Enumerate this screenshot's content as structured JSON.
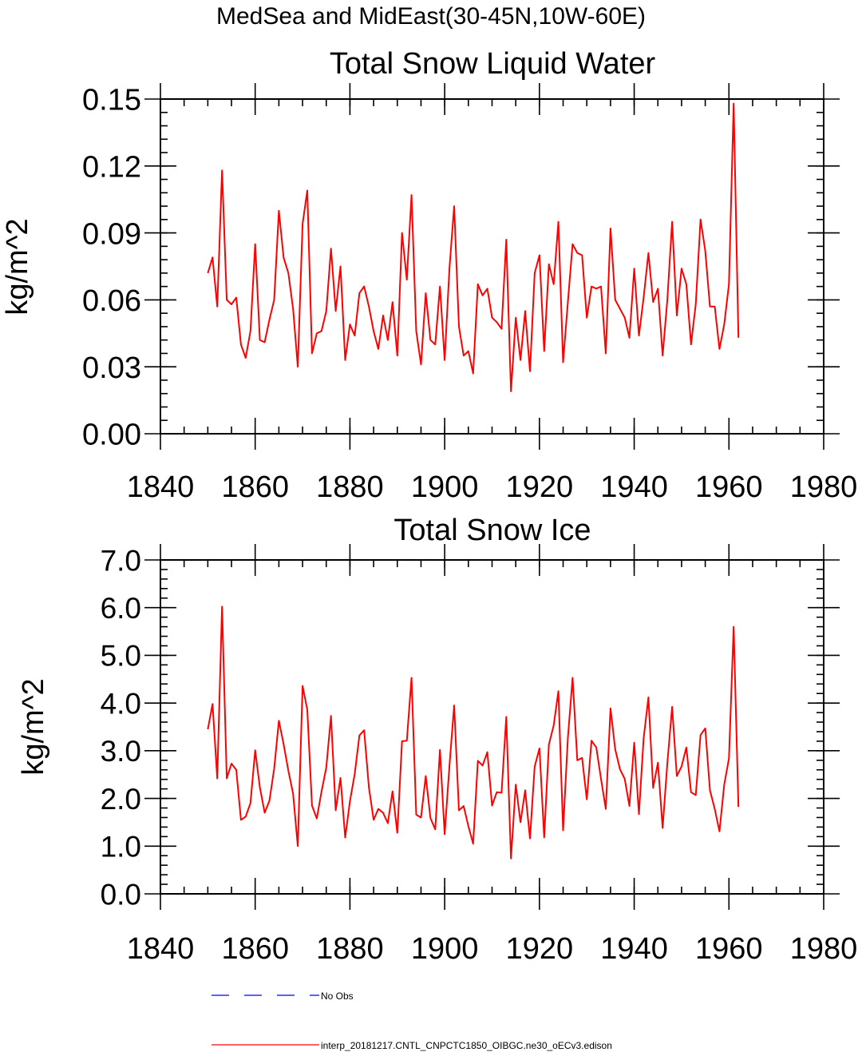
{
  "page_title": "MedSea and MidEast(30-45N,10W-60E)",
  "chart_data": [
    {
      "type": "line",
      "title": "Total Snow Liquid Water",
      "xlabel": "",
      "ylabel": "kg/m^2",
      "xlim": [
        1840,
        1980
      ],
      "ylim": [
        0.0,
        0.15
      ],
      "x_ticks": [
        1840,
        1860,
        1880,
        1900,
        1920,
        1940,
        1960,
        1980
      ],
      "x_tick_labels": [
        "1840",
        "1860",
        "1880",
        "1900",
        "1920",
        "1940",
        "1960",
        "1980"
      ],
      "y_ticks": [
        0.0,
        0.03,
        0.06,
        0.09,
        0.12,
        0.15
      ],
      "y_tick_labels": [
        "0.00",
        "0.03",
        "0.06",
        "0.09",
        "0.12",
        "0.15"
      ],
      "y_minor_step": 0.006,
      "x_minor_step": 5,
      "grid": false,
      "series": [
        {
          "name": "interp_20181217.CNTL_CNPCTC1850_OIBGC.ne30_oECv3.edison",
          "color": "#ff0000",
          "x_start": 1850,
          "x_step": 1,
          "values": [
            0.072,
            0.079,
            0.057,
            0.118,
            0.06,
            0.058,
            0.061,
            0.04,
            0.034,
            0.046,
            0.085,
            0.042,
            0.041,
            0.051,
            0.06,
            0.1,
            0.079,
            0.072,
            0.056,
            0.03,
            0.094,
            0.109,
            0.036,
            0.045,
            0.046,
            0.055,
            0.083,
            0.055,
            0.075,
            0.033,
            0.049,
            0.044,
            0.063,
            0.066,
            0.057,
            0.046,
            0.038,
            0.053,
            0.042,
            0.059,
            0.035,
            0.09,
            0.069,
            0.107,
            0.046,
            0.031,
            0.063,
            0.042,
            0.04,
            0.066,
            0.033,
            0.074,
            0.102,
            0.048,
            0.035,
            0.037,
            0.027,
            0.067,
            0.062,
            0.065,
            0.052,
            0.05,
            0.047,
            0.087,
            0.019,
            0.052,
            0.033,
            0.055,
            0.028,
            0.072,
            0.08,
            0.037,
            0.076,
            0.067,
            0.095,
            0.032,
            0.059,
            0.085,
            0.081,
            0.08,
            0.052,
            0.066,
            0.065,
            0.066,
            0.036,
            0.092,
            0.06,
            0.056,
            0.052,
            0.043,
            0.074,
            0.044,
            0.061,
            0.081,
            0.059,
            0.065,
            0.035,
            0.06,
            0.095,
            0.053,
            0.074,
            0.067,
            0.04,
            0.058,
            0.096,
            0.082,
            0.057,
            0.057,
            0.038,
            0.049,
            0.067,
            0.148,
            0.043
          ]
        }
      ]
    },
    {
      "type": "line",
      "title": "Total Snow Ice",
      "xlabel": "",
      "ylabel": "kg/m^2",
      "xlim": [
        1840,
        1980
      ],
      "ylim": [
        0.0,
        7.0
      ],
      "x_ticks": [
        1840,
        1860,
        1880,
        1900,
        1920,
        1940,
        1960,
        1980
      ],
      "x_tick_labels": [
        "1840",
        "1860",
        "1880",
        "1900",
        "1920",
        "1940",
        "1960",
        "1980"
      ],
      "y_ticks": [
        0.0,
        1.0,
        2.0,
        3.0,
        4.0,
        5.0,
        6.0,
        7.0
      ],
      "y_tick_labels": [
        "0.0",
        "1.0",
        "2.0",
        "3.0",
        "4.0",
        "5.0",
        "6.0",
        "7.0"
      ],
      "y_minor_step": 0.2,
      "x_minor_step": 5,
      "grid": false,
      "series": [
        {
          "name": "interp_20181217.CNTL_CNPCTC1850_OIBGC.ne30_oECv3.edison",
          "color": "#ff0000",
          "x_start": 1850,
          "x_step": 1,
          "values": [
            3.45,
            3.98,
            2.42,
            6.02,
            2.42,
            2.73,
            2.6,
            1.55,
            1.62,
            1.9,
            3.01,
            2.23,
            1.7,
            1.95,
            2.62,
            3.63,
            3.14,
            2.58,
            2.1,
            1.0,
            4.36,
            3.86,
            1.85,
            1.58,
            2.14,
            2.65,
            3.73,
            1.75,
            2.43,
            1.18,
            1.94,
            2.51,
            3.32,
            3.43,
            2.23,
            1.55,
            1.78,
            1.7,
            1.48,
            2.15,
            1.28,
            3.2,
            3.21,
            4.53,
            1.66,
            1.6,
            2.47,
            1.59,
            1.35,
            3.02,
            1.25,
            2.68,
            3.95,
            1.75,
            1.84,
            1.42,
            1.05,
            2.79,
            2.69,
            2.97,
            1.85,
            2.13,
            2.12,
            3.71,
            0.74,
            2.29,
            1.5,
            2.17,
            1.16,
            2.67,
            3.05,
            1.18,
            3.13,
            3.53,
            4.25,
            1.33,
            3.27,
            4.53,
            2.8,
            2.85,
            1.98,
            3.21,
            3.07,
            2.41,
            1.78,
            3.89,
            3.03,
            2.61,
            2.41,
            1.84,
            3.17,
            1.67,
            3.26,
            4.12,
            2.22,
            2.75,
            1.38,
            2.74,
            3.92,
            2.47,
            2.67,
            3.07,
            2.13,
            2.07,
            3.33,
            3.47,
            2.17,
            1.78,
            1.31,
            2.29,
            2.84,
            5.6,
            1.82
          ]
        }
      ]
    }
  ],
  "legend": {
    "placement": "bottom",
    "entries": [
      {
        "label": "No Obs",
        "color": "#0000ff",
        "style": "dashed"
      },
      {
        "label": "interp_20181217.CNTL_CNPCTC1850_OIBGC.ne30_oECv3.edison",
        "color": "#ff0000",
        "style": "solid"
      }
    ]
  }
}
